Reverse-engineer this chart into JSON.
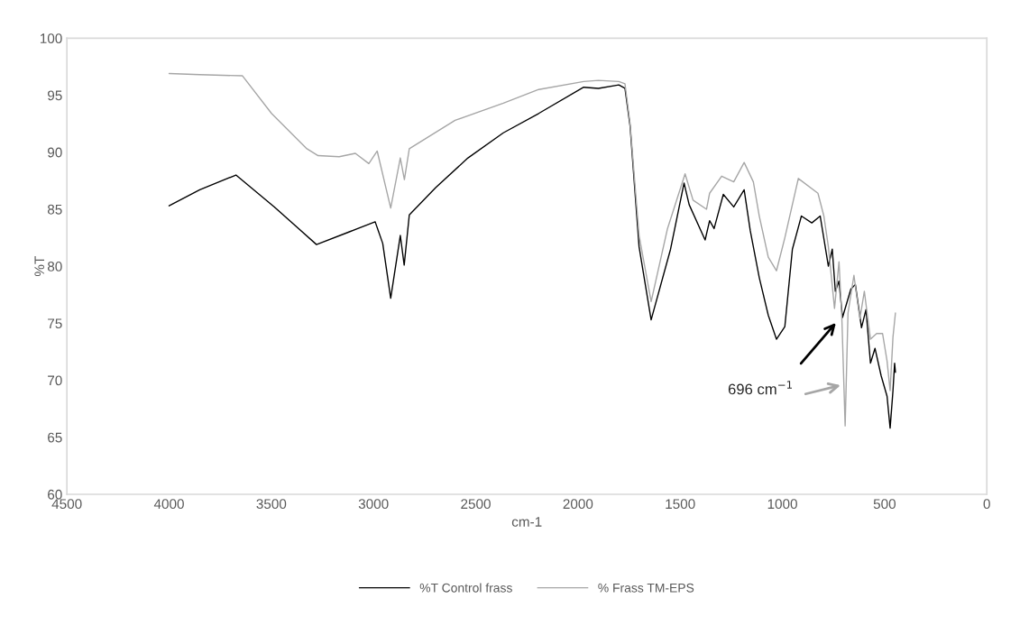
{
  "chart_data": {
    "type": "line",
    "xlabel": "cm-1",
    "ylabel": "%T",
    "xlim": [
      4500,
      0
    ],
    "xticks": [
      4500,
      4000,
      3500,
      3000,
      2500,
      2000,
      1500,
      1000,
      500,
      0
    ],
    "ylim": [
      60,
      100
    ],
    "yticks": [
      60,
      65,
      70,
      75,
      80,
      85,
      90,
      95,
      100
    ],
    "grid": false,
    "legend": "bottom",
    "marker": "none",
    "line_style": "solid",
    "series": [
      {
        "name": "%T Control frass",
        "color": "#000000",
        "x": [
          4000,
          3850,
          3673,
          3485,
          3279,
          3121,
          2992,
          2955,
          2916,
          2869,
          2850,
          2825,
          2696,
          2538,
          2365,
          2192,
          1972,
          1900,
          1800,
          1770,
          1745,
          1701,
          1642,
          1547,
          1481,
          1456,
          1378,
          1356,
          1334,
          1289,
          1238,
          1187,
          1157,
          1113,
          1069,
          1029,
          988,
          951,
          907,
          856,
          815,
          775,
          756,
          741,
          723,
          706,
          665,
          643,
          613,
          591,
          569,
          547,
          517,
          488,
          473,
          459,
          451,
          447
        ],
        "values": [
          85.3,
          86.7,
          88.0,
          85.2,
          81.9,
          83.0,
          83.9,
          82.0,
          77.2,
          82.7,
          80.1,
          84.5,
          86.9,
          89.5,
          91.7,
          93.4,
          95.7,
          95.6,
          95.9,
          95.6,
          92.3,
          81.7,
          75.3,
          81.5,
          87.3,
          85.4,
          82.3,
          84.0,
          83.3,
          86.3,
          85.2,
          86.7,
          83.1,
          79.0,
          75.7,
          73.6,
          74.7,
          81.5,
          84.4,
          83.8,
          84.4,
          80.0,
          81.5,
          77.8,
          78.7,
          75.5,
          78.0,
          78.4,
          74.6,
          76.2,
          71.5,
          72.8,
          70.4,
          68.6,
          65.8,
          69.1,
          71.5,
          70.7
        ]
      },
      {
        "name": "% Frass TM-EPS",
        "color": "#a6a6a6",
        "x": [
          4000,
          3850,
          3641,
          3499,
          3326,
          3271,
          3168,
          3089,
          3023,
          2982,
          2916,
          2869,
          2849,
          2825,
          2601,
          2365,
          2192,
          1972,
          1900,
          1800,
          1770,
          1745,
          1701,
          1642,
          1562,
          1476,
          1437,
          1371,
          1356,
          1297,
          1238,
          1187,
          1142,
          1113,
          1069,
          1029,
          988,
          922,
          826,
          797,
          775,
          745,
          723,
          709,
          693,
          679,
          650,
          621,
          599,
          569,
          539,
          510,
          488,
          473,
          459,
          447
        ],
        "values": [
          96.9,
          96.8,
          96.7,
          93.4,
          90.3,
          89.7,
          89.6,
          89.9,
          89.0,
          90.1,
          85.1,
          89.5,
          87.6,
          90.3,
          92.8,
          94.3,
          95.5,
          96.2,
          96.3,
          96.2,
          96.0,
          92.5,
          82.7,
          76.9,
          83.3,
          88.1,
          85.8,
          85.0,
          86.4,
          87.9,
          87.4,
          89.1,
          87.4,
          84.4,
          80.8,
          79.6,
          82.5,
          87.7,
          86.4,
          84.4,
          81.7,
          76.3,
          80.4,
          75.4,
          66.0,
          75.9,
          79.2,
          75.4,
          77.8,
          73.6,
          74.1,
          74.1,
          71.7,
          69.1,
          73.8,
          75.9
        ]
      }
    ],
    "annotations": [
      "696 cm$^{−1}$"
    ]
  }
}
